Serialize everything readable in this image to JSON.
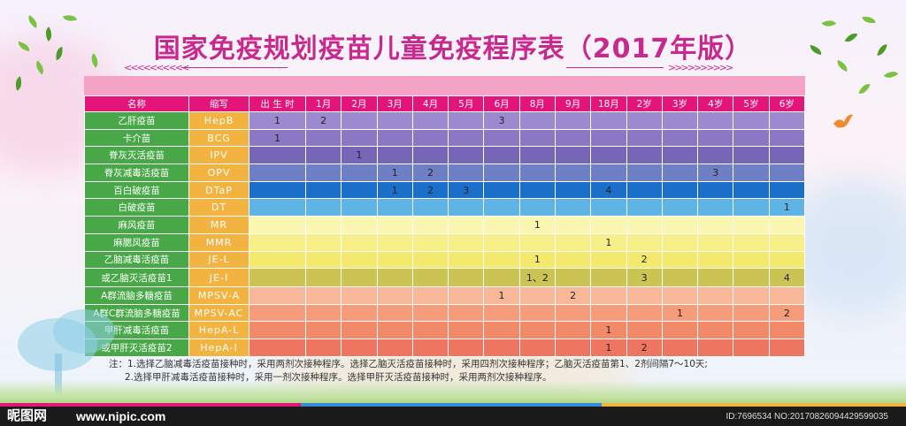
{
  "title": "国家免疫规划疫苗儿童免疫程序表（2017年版）",
  "decor": {
    "arrows_left": "<<<<<<<<<<",
    "arrows_right": ">>>>>>>>>>"
  },
  "table": {
    "headers": {
      "name": "名称",
      "abbr": "缩写"
    },
    "ages": [
      "出 生 时",
      "1月",
      "2月",
      "3月",
      "4月",
      "5月",
      "6月",
      "8月",
      "9月",
      "18月",
      "2岁",
      "3岁",
      "4岁",
      "5岁",
      "6岁"
    ],
    "rows": [
      {
        "name": "乙肝疫苗",
        "abbr": "HepB",
        "doses": [
          "1",
          "2",
          "",
          "",
          "",
          "",
          "3",
          "",
          "",
          "",
          "",
          "",
          "",
          "",
          ""
        ]
      },
      {
        "name": "卡介苗",
        "abbr": "BCG",
        "doses": [
          "1",
          "",
          "",
          "",
          "",
          "",
          "",
          "",
          "",
          "",
          "",
          "",
          "",
          "",
          ""
        ]
      },
      {
        "name": "脊灰灭活疫苗",
        "abbr": "IPV",
        "doses": [
          "",
          "",
          "1",
          "",
          "",
          "",
          "",
          "",
          "",
          "",
          "",
          "",
          "",
          "",
          ""
        ]
      },
      {
        "name": "脊灰减毒活疫苗",
        "abbr": "OPV",
        "doses": [
          "",
          "",
          "",
          "1",
          "2",
          "",
          "",
          "",
          "",
          "",
          "",
          "",
          "3",
          "",
          ""
        ]
      },
      {
        "name": "百白破疫苗",
        "abbr": "DTaP",
        "doses": [
          "",
          "",
          "",
          "1",
          "2",
          "3",
          "",
          "",
          "",
          "4",
          "",
          "",
          "",
          "",
          ""
        ]
      },
      {
        "name": "白破疫苗",
        "abbr": "DT",
        "doses": [
          "",
          "",
          "",
          "",
          "",
          "",
          "",
          "",
          "",
          "",
          "",
          "",
          "",
          "",
          "1"
        ]
      },
      {
        "name": "麻风疫苗",
        "abbr": "MR",
        "doses": [
          "",
          "",
          "",
          "",
          "",
          "",
          "",
          "1",
          "",
          "",
          "",
          "",
          "",
          "",
          ""
        ]
      },
      {
        "name": "麻腮风疫苗",
        "abbr": "MMR",
        "doses": [
          "",
          "",
          "",
          "",
          "",
          "",
          "",
          "",
          "",
          "1",
          "",
          "",
          "",
          "",
          ""
        ]
      },
      {
        "name": "乙脑减毒活疫苗",
        "abbr": "JE-L",
        "doses": [
          "",
          "",
          "",
          "",
          "",
          "",
          "",
          "1",
          "",
          "",
          "2",
          "",
          "",
          "",
          ""
        ]
      },
      {
        "name": "或乙脑灭活疫苗1",
        "abbr": "JE-I",
        "doses": [
          "",
          "",
          "",
          "",
          "",
          "",
          "",
          "1、2",
          "",
          "",
          "3",
          "",
          "",
          "",
          "4"
        ]
      },
      {
        "name": "A群流脑多糖疫苗",
        "abbr": "MPSV-A",
        "doses": [
          "",
          "",
          "",
          "",
          "",
          "",
          "1",
          "",
          "2",
          "",
          "",
          "",
          "",
          "",
          ""
        ]
      },
      {
        "name": "A群C群流脑多糖疫苗",
        "abbr": "MPSV-AC",
        "doses": [
          "",
          "",
          "",
          "",
          "",
          "",
          "",
          "",
          "",
          "",
          "",
          "1",
          "",
          "",
          "2"
        ]
      },
      {
        "name": "甲肝减毒活疫苗",
        "abbr": "HepA-L",
        "doses": [
          "",
          "",
          "",
          "",
          "",
          "",
          "",
          "",
          "",
          "1",
          "",
          "",
          "",
          "",
          ""
        ]
      },
      {
        "name": "或甲肝灭活疫苗2",
        "abbr": "HepA-I",
        "doses": [
          "",
          "",
          "",
          "",
          "",
          "",
          "",
          "",
          "",
          "1",
          "2",
          "",
          "",
          "",
          ""
        ]
      }
    ]
  },
  "notes": {
    "line1": "注：1.选择乙脑减毒活疫苗接种时，采用两剂次接种程序。选择乙脑灭活疫苗接种时，采用四剂次接种程序；乙脑灭活疫苗第1、2剂间隔7～10天;",
    "line2": "2.选择甲肝减毒活疫苗接种时，采用一剂次接种程序。选择甲肝灭活疫苗接种时，采用两剂次接种程序。"
  },
  "footer": {
    "logo": "昵图网",
    "site": "www.nipic.com",
    "id_text": "ID:7696534 NO:20170826094429599035"
  },
  "colors": {
    "title": "#c9298f",
    "header": "#e4157a",
    "name_col": "#48a848",
    "abbr_col": "#f3b340"
  }
}
